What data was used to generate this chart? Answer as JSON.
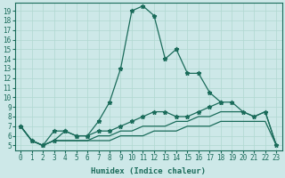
{
  "xlabel": "Humidex (Indice chaleur)",
  "xlim": [
    -0.5,
    23.5
  ],
  "ylim": [
    4.5,
    19.8
  ],
  "xticks": [
    0,
    1,
    2,
    3,
    4,
    5,
    6,
    7,
    8,
    9,
    10,
    11,
    12,
    13,
    14,
    15,
    16,
    17,
    18,
    19,
    20,
    21,
    22,
    23
  ],
  "yticks": [
    5,
    6,
    7,
    8,
    9,
    10,
    11,
    12,
    13,
    14,
    15,
    16,
    17,
    18,
    19
  ],
  "bg_color": "#cde8e8",
  "line_color": "#1a6b5a",
  "grid_color": "#b0d8d0",
  "line1_x": [
    0,
    1,
    2,
    3,
    4,
    5,
    6,
    7,
    8,
    9,
    10,
    11,
    12,
    13,
    14,
    15,
    16,
    17,
    18
  ],
  "line1_y": [
    7.0,
    5.5,
    5.0,
    6.5,
    6.5,
    6.0,
    6.0,
    7.5,
    9.5,
    13.0,
    19.0,
    19.5,
    18.5,
    14.0,
    15.0,
    12.5,
    12.5,
    10.5,
    9.5
  ],
  "line2_x": [
    0,
    1,
    2,
    3,
    4,
    5,
    6,
    7,
    8,
    9,
    10,
    11,
    12,
    13,
    14,
    15,
    16,
    17,
    18,
    19,
    20,
    21,
    22,
    23
  ],
  "line2_y": [
    7.0,
    5.5,
    5.0,
    5.5,
    6.5,
    6.0,
    6.0,
    6.5,
    6.5,
    7.0,
    7.5,
    8.0,
    8.5,
    8.5,
    8.0,
    8.0,
    8.5,
    9.0,
    9.5,
    9.5,
    8.5,
    8.0,
    8.5,
    5.0
  ],
  "line3_x": [
    0,
    1,
    2,
    3,
    4,
    5,
    6,
    7,
    8,
    9,
    10,
    11,
    12,
    13,
    14,
    15,
    16,
    17,
    18,
    19,
    20,
    21,
    22,
    23
  ],
  "line3_y": [
    7.0,
    5.5,
    5.0,
    5.5,
    5.5,
    5.5,
    5.5,
    6.0,
    6.0,
    6.5,
    6.5,
    7.0,
    7.0,
    7.0,
    7.5,
    7.5,
    8.0,
    8.0,
    8.5,
    8.5,
    8.5,
    8.0,
    8.5,
    5.0
  ],
  "line4_x": [
    0,
    1,
    2,
    3,
    4,
    5,
    6,
    7,
    8,
    9,
    10,
    11,
    12,
    13,
    14,
    15,
    16,
    17,
    18,
    19,
    20,
    21,
    22,
    23
  ],
  "line4_y": [
    7.0,
    5.5,
    5.0,
    5.5,
    5.5,
    5.5,
    5.5,
    5.5,
    5.5,
    6.0,
    6.0,
    6.0,
    6.5,
    6.5,
    6.5,
    7.0,
    7.0,
    7.0,
    7.5,
    7.5,
    7.5,
    7.5,
    7.5,
    5.0
  ]
}
